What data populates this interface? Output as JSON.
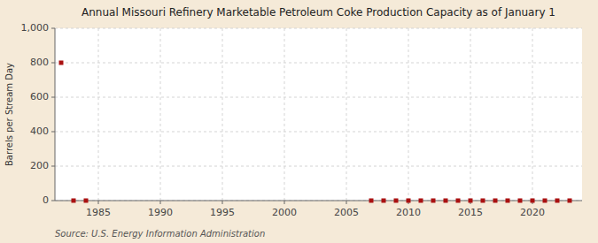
{
  "chart_data": {
    "type": "scatter",
    "title": "Annual Missouri Refinery Marketable Petroleum Coke Production Capacity as of January 1",
    "ylabel": "Barrels per Stream Day",
    "source": "Source: U.S. Energy Information Administration",
    "x": [
      1982,
      1983,
      1984,
      2007,
      2008,
      2009,
      2010,
      2011,
      2012,
      2013,
      2014,
      2015,
      2016,
      2017,
      2018,
      2019,
      2020,
      2021,
      2022,
      2023
    ],
    "values": [
      800,
      0,
      0,
      0,
      0,
      0,
      0,
      0,
      0,
      0,
      0,
      0,
      0,
      0,
      0,
      0,
      0,
      0,
      0,
      0
    ],
    "color": "#aa1111",
    "marker": "square",
    "xlim": [
      1981.5,
      2024
    ],
    "xticks": [
      1985,
      1990,
      1995,
      2000,
      2005,
      2010,
      2015,
      2020
    ],
    "ylim": [
      0,
      1000
    ],
    "yticks": [
      0,
      200,
      400,
      600,
      800,
      {
        "value": 1000,
        "label": "1,000"
      }
    ],
    "grid": true
  }
}
